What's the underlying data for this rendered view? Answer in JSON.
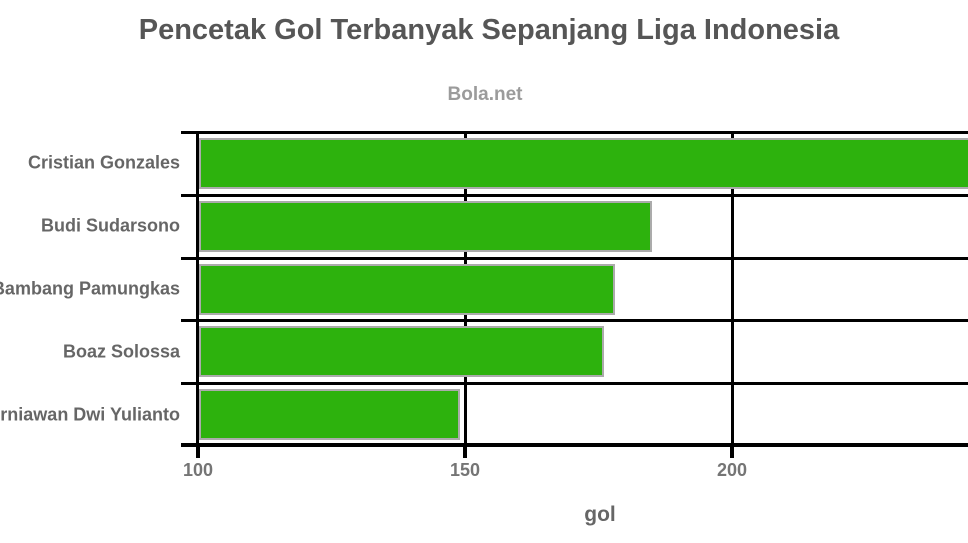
{
  "chart_data": {
    "type": "bar",
    "orientation": "horizontal",
    "title": "Pencetak Gol Terbanyak Sepanjang Liga Indonesia",
    "subtitle": "Bola.net",
    "xlabel": "gol",
    "categories": [
      "Cristian Gonzales",
      "Budi Sudarsono",
      "Bambang Pamungkas",
      "Boaz Solossa",
      "Kurniawan Dwi Yulianto"
    ],
    "values": [
      249,
      185,
      178,
      176,
      149
    ],
    "x_ticks": [
      100,
      150,
      200
    ],
    "xlim": [
      100,
      244
    ],
    "grid": true,
    "legend": "none",
    "colors": {
      "bar_fill": "#2DB20D",
      "bar_border": "#ABABAB",
      "axis_line": "#000000",
      "title_text": "#565656",
      "subtitle_text": "#9B9B9B",
      "label_text": "#666666",
      "tick_text": "#757575"
    }
  }
}
